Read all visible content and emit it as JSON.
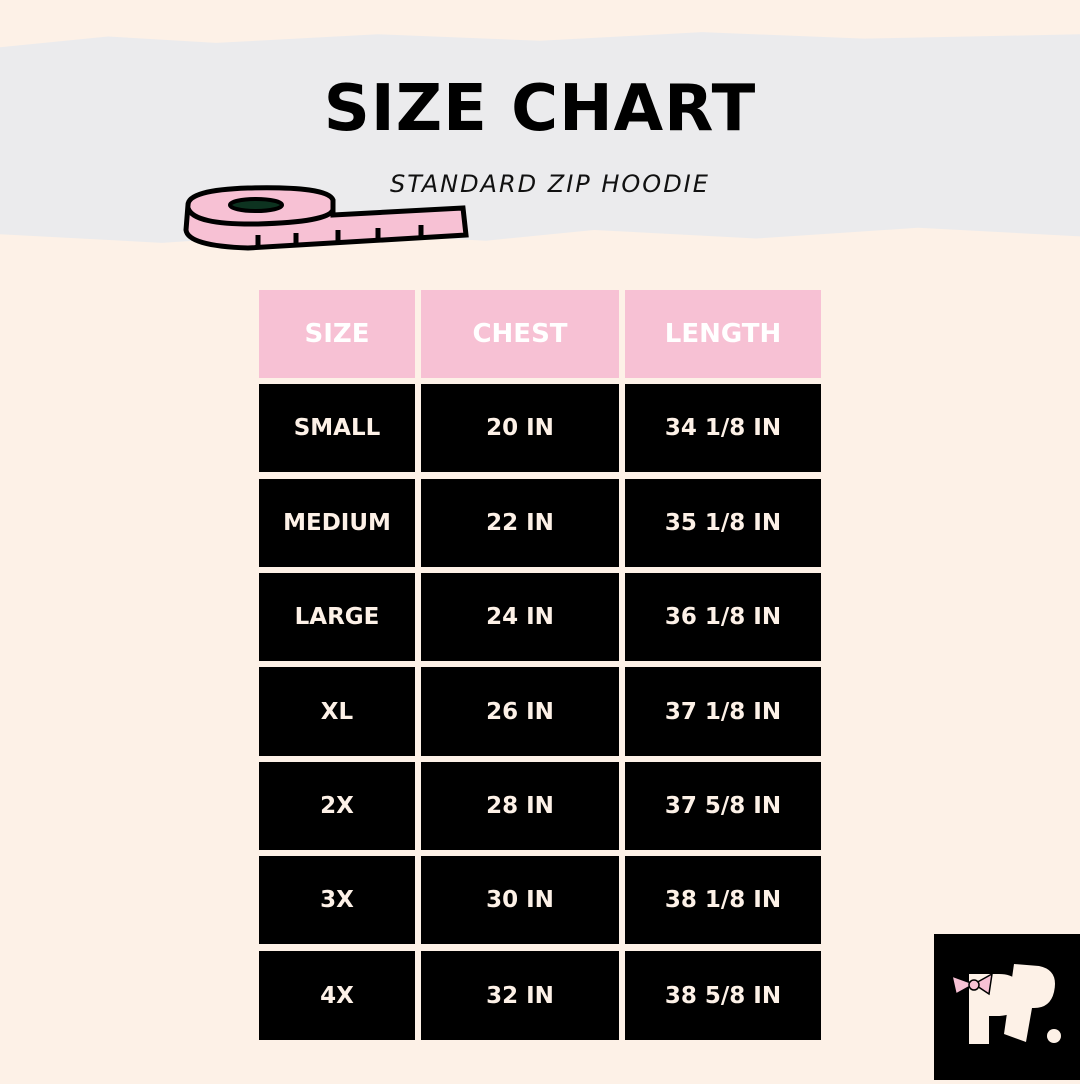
{
  "title": "SIZE CHART",
  "subtitle": "STANDARD ZIP HOODIE",
  "table": {
    "headers": [
      "SIZE",
      "CHEST",
      "LENGTH"
    ],
    "rows": [
      [
        "SMALL",
        "20 IN",
        "34 1/8 IN"
      ],
      [
        "MEDIUM",
        "22 IN",
        "35 1/8 IN"
      ],
      [
        "LARGE",
        "24 IN",
        "36 1/8 IN"
      ],
      [
        "XL",
        "26 IN",
        "37 1/8 IN"
      ],
      [
        "2X",
        "28 IN",
        "37 5/8 IN"
      ],
      [
        "3X",
        "30 IN",
        "38 1/8 IN"
      ],
      [
        "4X",
        "32 IN",
        "38 5/8 IN"
      ]
    ]
  },
  "logo": {
    "text": "PP."
  },
  "colors": {
    "background": "#fdf1e7",
    "pink": "#f7c1d4",
    "cell": "#000000"
  }
}
